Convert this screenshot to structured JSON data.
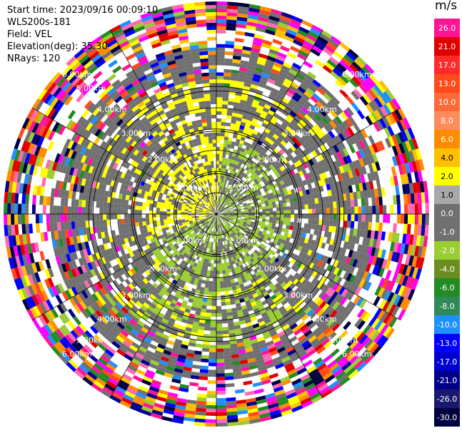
{
  "header": {
    "start_time": "Start time: 2023/09/16 00:09:10",
    "instrument": "WLS200s-181",
    "field": "Field: VEL",
    "elevation": "Elevation(deg): 35.30",
    "nrays": "NRays: 120"
  },
  "colorbar": {
    "unit": "m/s",
    "levels": [
      "26.0",
      "21.0",
      "17.0",
      "13.0",
      "10.0",
      "8.0",
      "6.0",
      "4.0",
      "2.0",
      "1.0",
      "0.0",
      "-1.0",
      "-2.0",
      "-4.0",
      "-6.0",
      "-8.0",
      "-10.0",
      "-13.0",
      "-17.0",
      "-21.0",
      "-26.0",
      "-30.0"
    ],
    "colors": [
      "#ff1493",
      "#e00000",
      "#ff2a2a",
      "#ff4a1a",
      "#ff6a3a",
      "#ff8c5a",
      "#ff8c00",
      "#ffc000",
      "#ffff00",
      "#a8a8a8",
      "#707070",
      "#707070",
      "#9acd32",
      "#6b8e23",
      "#228b22",
      "#2e8b57",
      "#1e90ff",
      "#0000ff",
      "#0000cd",
      "#00008b",
      "#191970",
      "#000040"
    ]
  },
  "chart_data": {
    "type": "heatmap",
    "subtype": "polar-ppi",
    "field": "VEL",
    "unit": "m/s",
    "nrays": 120,
    "elevation_deg": 35.3,
    "range_ring_labels": [
      "1.00km",
      "2.00km",
      "3.00km",
      "4.00km",
      "5.00km",
      "6.00km"
    ],
    "range_rings_km": [
      1,
      2,
      3,
      4,
      5,
      6
    ],
    "color_levels": [
      -30,
      -26,
      -21,
      -17,
      -13,
      -10,
      -8,
      -6,
      -4,
      -2,
      -1,
      0,
      1,
      2,
      4,
      6,
      8,
      10,
      13,
      17,
      21,
      26
    ],
    "near_field": "mostly 0.0 to 2.0 m/s (yellow) in west/north; -1.0 to -4.0 m/s (green) to east and south",
    "far_field": "noisy mixed values across full range"
  }
}
